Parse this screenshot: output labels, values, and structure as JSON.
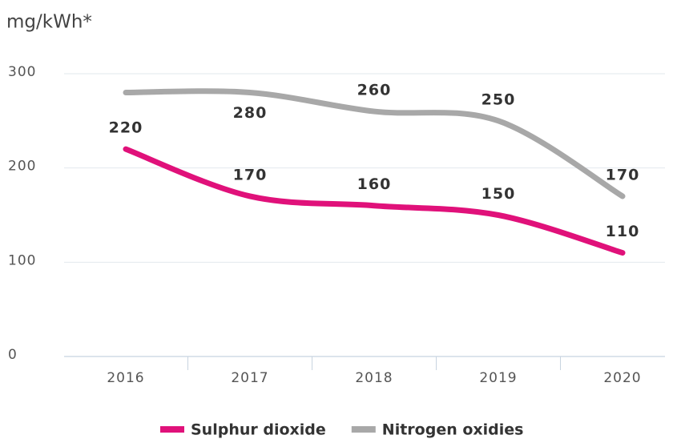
{
  "chart_data": {
    "type": "line",
    "y_label": "mg/kWh*",
    "categories": [
      "2016",
      "2017",
      "2018",
      "2019",
      "2020"
    ],
    "series": [
      {
        "name": "Sulphur dioxide",
        "color": "#e0117a",
        "values": [
          220,
          170,
          160,
          150,
          110
        ]
      },
      {
        "name": "Nitrogen oxidies",
        "color": "#a8a8a8",
        "values": [
          280,
          280,
          260,
          250,
          170
        ],
        "value_labels": [
          null,
          "280",
          "260",
          "250",
          "170"
        ]
      }
    ],
    "ylim": [
      0,
      300
    ],
    "yticks": [
      0,
      100,
      200,
      300
    ],
    "grid": true,
    "legend": "bottom"
  }
}
